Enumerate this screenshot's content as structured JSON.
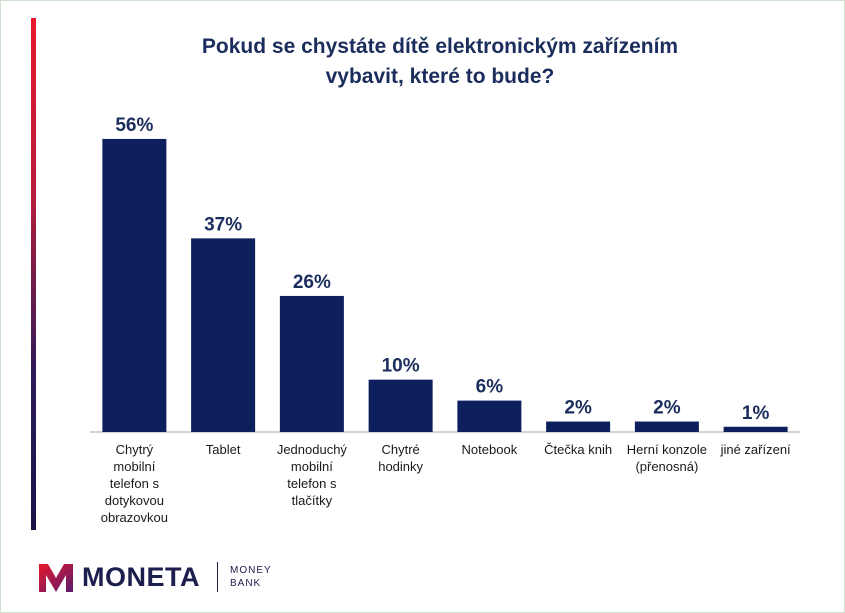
{
  "chart_data": {
    "type": "bar",
    "title_lines": [
      "Pokud se chystáte dítě elektronickým zařízením",
      "vybavit, které to bude?"
    ],
    "categories": [
      [
        "Chytrý",
        "mobilní",
        "telefon s",
        "dotykovou",
        "obrazovkou"
      ],
      [
        "Tablet"
      ],
      [
        "Jednoduchý",
        "mobilní",
        "telefon s",
        "tlačítky"
      ],
      [
        "Chytré",
        "hodinky"
      ],
      [
        "Notebook"
      ],
      [
        "Čtečka knih"
      ],
      [
        "Herní konzole",
        "(přenosná)"
      ],
      [
        "jiné zařízení"
      ]
    ],
    "values": [
      56,
      37,
      26,
      10,
      6,
      2,
      2,
      1
    ],
    "value_labels": [
      "56%",
      "37%",
      "26%",
      "10%",
      "6%",
      "2%",
      "2%",
      "1%"
    ],
    "ylim": [
      0,
      60
    ],
    "grid": false,
    "bar_color": "#0d1f5c"
  },
  "brand": {
    "name": "MONETA",
    "sub_line1": "MONEY",
    "sub_line2": "BANK"
  },
  "colors": {
    "title": "#1b2d5c",
    "label": "#1b2d5c",
    "axis": "#aaaaaa"
  }
}
